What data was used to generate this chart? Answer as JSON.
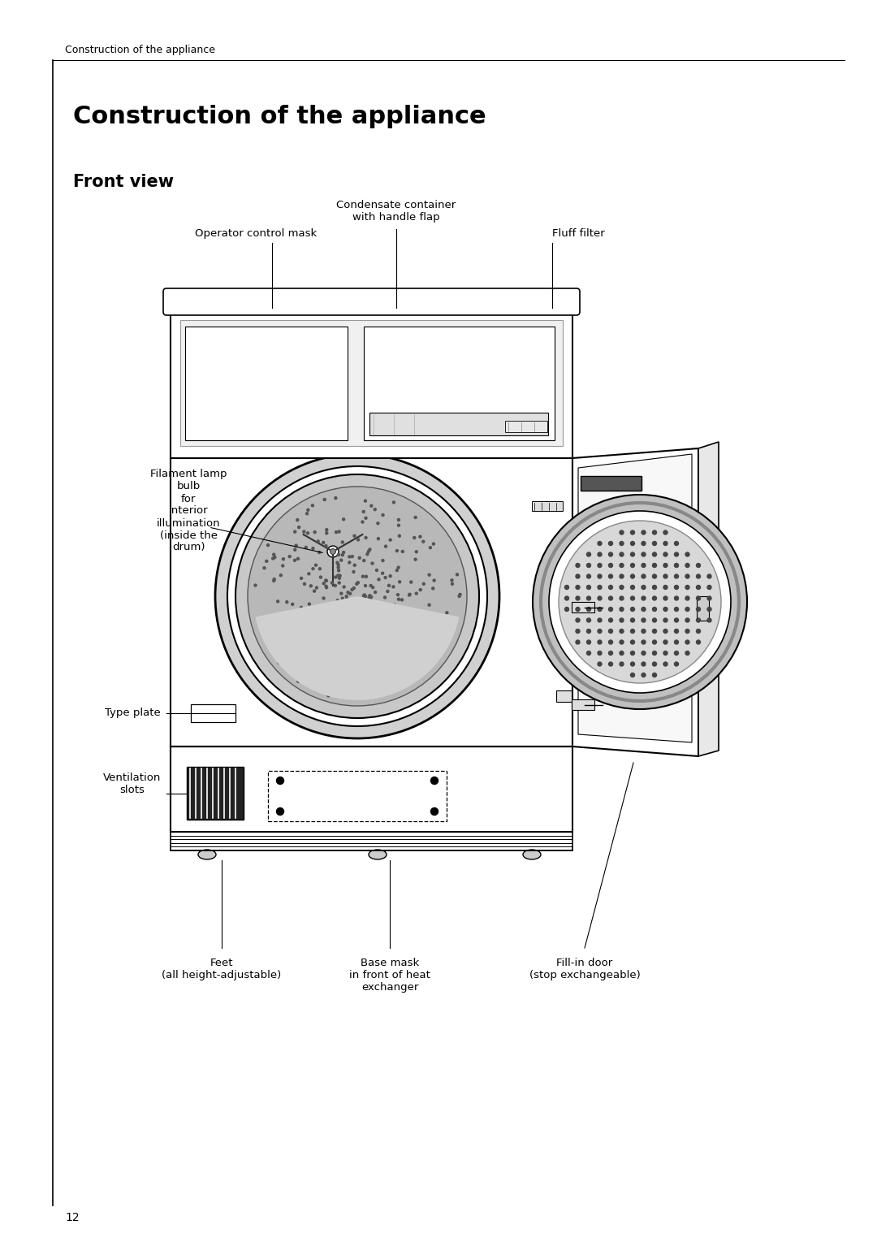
{
  "bg_color": "#ffffff",
  "header_text": "Construction of the appliance",
  "title": "Construction of the appliance",
  "subtitle": "Front view",
  "page_number": "12",
  "header_fontsize": 9,
  "title_fontsize": 22,
  "subtitle_fontsize": 15,
  "label_fontsize": 9.5,
  "labels": {
    "operator_control_mask": "Operator control mask",
    "condensate_container": "Condensate container\nwith handle flap",
    "fluff_filter": "Fluff filter",
    "filament_lamp": "Filament lamp\nbulb\nfor\ninterior\nillumination\n(inside the\ndrum)",
    "type_plate": "Type plate",
    "ventilation_slots": "Ventilation\nslots",
    "feet": "Feet\n(all height-adjustable)",
    "base_mask": "Base mask\nin front of heat\nexchanger",
    "fill_in_door": "Fill-in door\n(stop exchangeable)"
  }
}
